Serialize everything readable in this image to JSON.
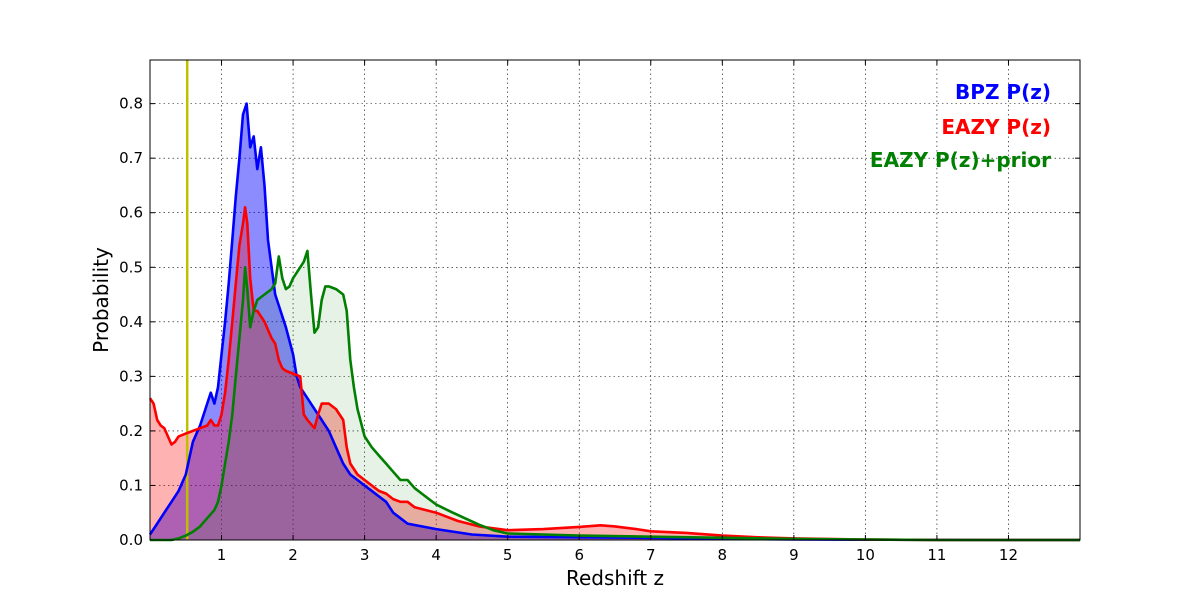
{
  "chart_data": {
    "type": "area",
    "xlabel": "Redshift z",
    "ylabel": "Probability",
    "xlim": [
      0,
      13
    ],
    "ylim": [
      0,
      0.88
    ],
    "grid": true,
    "legend_position": "top-right",
    "x_ticks": [
      1,
      2,
      3,
      4,
      5,
      6,
      7,
      8,
      9,
      10,
      11,
      12
    ],
    "y_ticks": [
      0.0,
      0.1,
      0.2,
      0.3,
      0.4,
      0.5,
      0.6,
      0.7,
      0.8
    ],
    "vertical_line": {
      "x": 0.52,
      "color": "#bfbf00"
    },
    "series": [
      {
        "name": "BPZ P(z)",
        "color": "#0000ff",
        "fill_alpha": 0.45,
        "points": [
          [
            0,
            0.01
          ],
          [
            0.1,
            0.03
          ],
          [
            0.2,
            0.05
          ],
          [
            0.3,
            0.07
          ],
          [
            0.4,
            0.09
          ],
          [
            0.5,
            0.12
          ],
          [
            0.55,
            0.15
          ],
          [
            0.6,
            0.18
          ],
          [
            0.7,
            0.21
          ],
          [
            0.8,
            0.25
          ],
          [
            0.85,
            0.27
          ],
          [
            0.9,
            0.25
          ],
          [
            0.95,
            0.28
          ],
          [
            1.0,
            0.34
          ],
          [
            1.05,
            0.4
          ],
          [
            1.1,
            0.47
          ],
          [
            1.15,
            0.55
          ],
          [
            1.2,
            0.63
          ],
          [
            1.25,
            0.7
          ],
          [
            1.3,
            0.78
          ],
          [
            1.35,
            0.8
          ],
          [
            1.4,
            0.72
          ],
          [
            1.45,
            0.74
          ],
          [
            1.5,
            0.68
          ],
          [
            1.55,
            0.72
          ],
          [
            1.6,
            0.65
          ],
          [
            1.65,
            0.55
          ],
          [
            1.7,
            0.5
          ],
          [
            1.75,
            0.45
          ],
          [
            1.8,
            0.43
          ],
          [
            1.9,
            0.39
          ],
          [
            2.0,
            0.34
          ],
          [
            2.05,
            0.3
          ],
          [
            2.1,
            0.28
          ],
          [
            2.2,
            0.26
          ],
          [
            2.3,
            0.24
          ],
          [
            2.4,
            0.22
          ],
          [
            2.5,
            0.2
          ],
          [
            2.6,
            0.17
          ],
          [
            2.7,
            0.14
          ],
          [
            2.8,
            0.12
          ],
          [
            2.9,
            0.11
          ],
          [
            3.0,
            0.1
          ],
          [
            3.1,
            0.09
          ],
          [
            3.2,
            0.08
          ],
          [
            3.3,
            0.07
          ],
          [
            3.4,
            0.05
          ],
          [
            3.5,
            0.04
          ],
          [
            3.6,
            0.03
          ],
          [
            3.8,
            0.025
          ],
          [
            4.0,
            0.02
          ],
          [
            4.5,
            0.01
          ],
          [
            5.0,
            0.006
          ],
          [
            6.0,
            0.005
          ],
          [
            7.0,
            0.004
          ],
          [
            8.0,
            0.002
          ],
          [
            9.0,
            0.001
          ],
          [
            10.0,
            0.0005
          ],
          [
            12.0,
            0.0
          ],
          [
            13.0,
            0.0
          ]
        ]
      },
      {
        "name": "EAZY P(z)",
        "color": "#ff0000",
        "fill_alpha": 0.3,
        "points": [
          [
            0,
            0.26
          ],
          [
            0.05,
            0.25
          ],
          [
            0.1,
            0.22
          ],
          [
            0.15,
            0.21
          ],
          [
            0.2,
            0.205
          ],
          [
            0.25,
            0.19
          ],
          [
            0.3,
            0.175
          ],
          [
            0.35,
            0.18
          ],
          [
            0.4,
            0.19
          ],
          [
            0.5,
            0.195
          ],
          [
            0.6,
            0.2
          ],
          [
            0.7,
            0.205
          ],
          [
            0.8,
            0.21
          ],
          [
            0.85,
            0.22
          ],
          [
            0.9,
            0.21
          ],
          [
            0.95,
            0.21
          ],
          [
            1.0,
            0.23
          ],
          [
            1.05,
            0.27
          ],
          [
            1.1,
            0.33
          ],
          [
            1.15,
            0.4
          ],
          [
            1.2,
            0.47
          ],
          [
            1.25,
            0.54
          ],
          [
            1.3,
            0.58
          ],
          [
            1.33,
            0.61
          ],
          [
            1.36,
            0.58
          ],
          [
            1.4,
            0.48
          ],
          [
            1.45,
            0.42
          ],
          [
            1.5,
            0.42
          ],
          [
            1.6,
            0.4
          ],
          [
            1.7,
            0.37
          ],
          [
            1.75,
            0.36
          ],
          [
            1.8,
            0.33
          ],
          [
            1.85,
            0.315
          ],
          [
            1.9,
            0.31
          ],
          [
            2.0,
            0.305
          ],
          [
            2.1,
            0.3
          ],
          [
            2.15,
            0.23
          ],
          [
            2.2,
            0.22
          ],
          [
            2.3,
            0.205
          ],
          [
            2.35,
            0.23
          ],
          [
            2.4,
            0.25
          ],
          [
            2.5,
            0.25
          ],
          [
            2.6,
            0.24
          ],
          [
            2.7,
            0.22
          ],
          [
            2.75,
            0.17
          ],
          [
            2.8,
            0.14
          ],
          [
            2.9,
            0.12
          ],
          [
            3.0,
            0.11
          ],
          [
            3.1,
            0.1
          ],
          [
            3.2,
            0.09
          ],
          [
            3.3,
            0.085
          ],
          [
            3.4,
            0.075
          ],
          [
            3.5,
            0.07
          ],
          [
            3.6,
            0.07
          ],
          [
            3.7,
            0.06
          ],
          [
            4.0,
            0.05
          ],
          [
            4.3,
            0.035
          ],
          [
            4.6,
            0.025
          ],
          [
            5.0,
            0.018
          ],
          [
            5.5,
            0.02
          ],
          [
            6.0,
            0.024
          ],
          [
            6.3,
            0.027
          ],
          [
            6.5,
            0.025
          ],
          [
            6.8,
            0.02
          ],
          [
            7.0,
            0.016
          ],
          [
            7.5,
            0.013
          ],
          [
            8.0,
            0.008
          ],
          [
            8.5,
            0.005
          ],
          [
            9.0,
            0.003
          ],
          [
            10.0,
            0.001
          ],
          [
            11.0,
            0.0
          ],
          [
            13.0,
            0.0
          ]
        ]
      },
      {
        "name": "EAZY P(z)+prior",
        "color": "#007f00",
        "fill_alpha": 0.1,
        "points": [
          [
            0,
            0.0
          ],
          [
            0.3,
            0.0
          ],
          [
            0.4,
            0.003
          ],
          [
            0.5,
            0.008
          ],
          [
            0.6,
            0.015
          ],
          [
            0.7,
            0.025
          ],
          [
            0.8,
            0.04
          ],
          [
            0.9,
            0.055
          ],
          [
            0.95,
            0.07
          ],
          [
            1.0,
            0.1
          ],
          [
            1.05,
            0.14
          ],
          [
            1.1,
            0.18
          ],
          [
            1.15,
            0.23
          ],
          [
            1.2,
            0.3
          ],
          [
            1.25,
            0.37
          ],
          [
            1.3,
            0.44
          ],
          [
            1.33,
            0.5
          ],
          [
            1.36,
            0.46
          ],
          [
            1.4,
            0.39
          ],
          [
            1.45,
            0.42
          ],
          [
            1.5,
            0.44
          ],
          [
            1.6,
            0.45
          ],
          [
            1.7,
            0.46
          ],
          [
            1.75,
            0.47
          ],
          [
            1.8,
            0.52
          ],
          [
            1.85,
            0.48
          ],
          [
            1.9,
            0.46
          ],
          [
            1.95,
            0.465
          ],
          [
            2.0,
            0.48
          ],
          [
            2.05,
            0.49
          ],
          [
            2.1,
            0.5
          ],
          [
            2.15,
            0.51
          ],
          [
            2.2,
            0.53
          ],
          [
            2.25,
            0.45
          ],
          [
            2.3,
            0.38
          ],
          [
            2.35,
            0.39
          ],
          [
            2.4,
            0.44
          ],
          [
            2.45,
            0.465
          ],
          [
            2.5,
            0.465
          ],
          [
            2.6,
            0.46
          ],
          [
            2.7,
            0.45
          ],
          [
            2.75,
            0.42
          ],
          [
            2.8,
            0.33
          ],
          [
            2.85,
            0.28
          ],
          [
            2.9,
            0.24
          ],
          [
            3.0,
            0.19
          ],
          [
            3.1,
            0.17
          ],
          [
            3.2,
            0.155
          ],
          [
            3.3,
            0.14
          ],
          [
            3.4,
            0.125
          ],
          [
            3.5,
            0.11
          ],
          [
            3.6,
            0.11
          ],
          [
            3.7,
            0.095
          ],
          [
            3.8,
            0.085
          ],
          [
            3.9,
            0.075
          ],
          [
            4.0,
            0.065
          ],
          [
            4.2,
            0.052
          ],
          [
            4.4,
            0.04
          ],
          [
            4.6,
            0.028
          ],
          [
            4.8,
            0.018
          ],
          [
            5.0,
            0.012
          ],
          [
            5.5,
            0.01
          ],
          [
            6.0,
            0.008
          ],
          [
            7.0,
            0.006
          ],
          [
            8.0,
            0.004
          ],
          [
            9.0,
            0.002
          ],
          [
            10.0,
            0.001
          ],
          [
            11.0,
            0.0
          ],
          [
            13.0,
            0.0
          ]
        ]
      }
    ]
  }
}
